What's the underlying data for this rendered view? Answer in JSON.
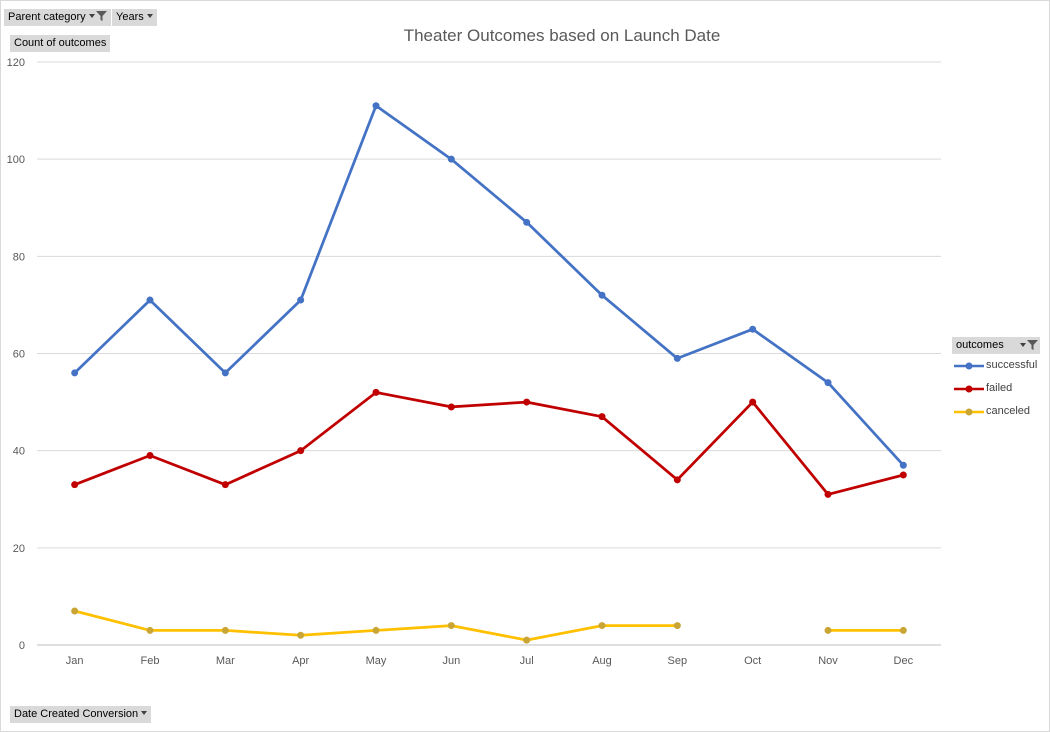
{
  "filters": {
    "parent_category": "Parent category",
    "years": "Years",
    "date_conversion": "Date Created Conversion"
  },
  "value_field": "Count of outcomes",
  "legend": {
    "title": "outcomes"
  },
  "chart_data": {
    "type": "line",
    "title": "Theater Outcomes based on Launch Date",
    "xlabel": "",
    "ylabel": "",
    "categories": [
      "Jan",
      "Feb",
      "Mar",
      "Apr",
      "May",
      "Jun",
      "Jul",
      "Aug",
      "Sep",
      "Oct",
      "Nov",
      "Dec"
    ],
    "ylim": [
      0,
      120
    ],
    "yticks": [
      0,
      20,
      40,
      60,
      80,
      100,
      120
    ],
    "grid": true,
    "legend_position": "right",
    "series": [
      {
        "name": "successful",
        "color": "#4472C4",
        "values": [
          56,
          71,
          56,
          71,
          111,
          100,
          87,
          72,
          59,
          65,
          54,
          37
        ]
      },
      {
        "name": "failed",
        "color": "#C00000",
        "values": [
          33,
          39,
          33,
          40,
          52,
          49,
          50,
          47,
          34,
          50,
          31,
          35
        ]
      },
      {
        "name": "canceled",
        "color": "#FFC000",
        "marker_color": "#C9A535",
        "values": [
          7,
          3,
          3,
          2,
          3,
          4,
          1,
          4,
          4,
          null,
          3,
          3
        ]
      }
    ]
  }
}
